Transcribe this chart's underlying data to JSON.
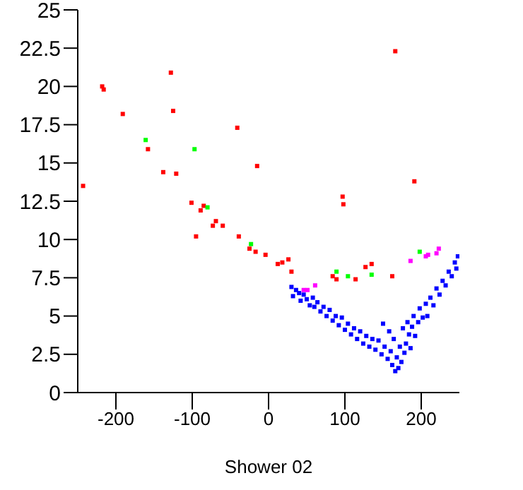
{
  "chart_data": {
    "type": "scatter",
    "xlabel": "Shower 02",
    "xlim": [
      -250,
      250
    ],
    "xticks": [
      -200,
      -100,
      0,
      100,
      200
    ],
    "ylim": [
      0,
      25
    ],
    "yticks": [
      0,
      2.5,
      5,
      7.5,
      10,
      12.5,
      15,
      17.5,
      20,
      22.5,
      25
    ],
    "grid": false,
    "legend": false,
    "marker": "square",
    "series": [
      {
        "color": "#0000ff",
        "x": [
          30,
          32,
          36,
          40,
          42,
          46,
          50,
          54,
          58,
          60,
          64,
          68,
          72,
          76,
          80,
          84,
          88,
          92,
          96,
          100,
          104,
          108,
          112,
          116,
          120,
          124,
          128,
          132,
          136,
          140,
          144,
          148,
          150,
          152,
          156,
          158,
          160,
          162,
          164,
          166,
          168,
          170,
          172,
          174,
          176,
          178,
          180,
          182,
          184,
          186,
          188,
          190,
          192,
          196,
          198,
          202,
          206,
          208,
          212,
          216,
          220,
          224,
          228,
          232,
          236,
          240,
          244,
          246,
          248
        ],
        "values": [
          6.9,
          6.3,
          6.7,
          6.5,
          6.0,
          6.4,
          6.1,
          5.7,
          6.2,
          5.6,
          5.9,
          5.3,
          5.6,
          5.0,
          5.4,
          4.7,
          5.0,
          4.4,
          4.9,
          4.1,
          4.5,
          3.8,
          4.2,
          3.5,
          4.0,
          3.2,
          3.7,
          3.0,
          3.5,
          2.8,
          3.4,
          2.5,
          4.5,
          3.0,
          2.2,
          4.0,
          2.7,
          1.8,
          3.5,
          1.4,
          2.3,
          1.6,
          3.0,
          2.0,
          4.2,
          2.6,
          3.2,
          4.6,
          3.8,
          2.9,
          4.3,
          5.0,
          3.7,
          4.6,
          5.5,
          4.9,
          5.8,
          5.0,
          6.2,
          5.7,
          6.8,
          6.4,
          7.3,
          7.0,
          7.9,
          7.6,
          8.5,
          8.1,
          8.9
        ]
      },
      {
        "color": "#ff0000",
        "x": [
          -128,
          -218,
          -216,
          -125,
          -191,
          -41,
          -158,
          -15,
          -138,
          -121,
          -243,
          -101,
          -85,
          -89,
          -69,
          -73,
          -60,
          -95,
          -39,
          -25,
          -17,
          -4,
          166,
          191,
          97,
          98,
          12,
          18,
          26,
          30,
          89,
          84,
          114,
          127,
          135,
          162
        ],
        "values": [
          20.9,
          20.0,
          19.8,
          18.4,
          18.2,
          17.3,
          15.9,
          14.8,
          14.4,
          14.3,
          13.5,
          12.4,
          12.2,
          11.9,
          11.2,
          10.9,
          10.9,
          10.2,
          10.2,
          9.4,
          9.2,
          9.0,
          22.3,
          13.8,
          12.8,
          12.3,
          8.4,
          8.5,
          8.7,
          7.9,
          7.4,
          7.6,
          7.4,
          8.2,
          8.4,
          7.6
        ]
      },
      {
        "color": "#00ff00",
        "x": [
          -161,
          -97,
          -80,
          -23,
          89,
          104,
          135,
          198
        ],
        "values": [
          16.5,
          15.9,
          12.1,
          9.7,
          7.9,
          7.6,
          7.7,
          9.2
        ]
      },
      {
        "color": "#ff00ff",
        "x": [
          186,
          206,
          209,
          220,
          223,
          46,
          51,
          61
        ],
        "values": [
          8.6,
          8.9,
          9.0,
          9.1,
          9.4,
          6.7,
          6.7,
          7.0
        ]
      }
    ]
  }
}
